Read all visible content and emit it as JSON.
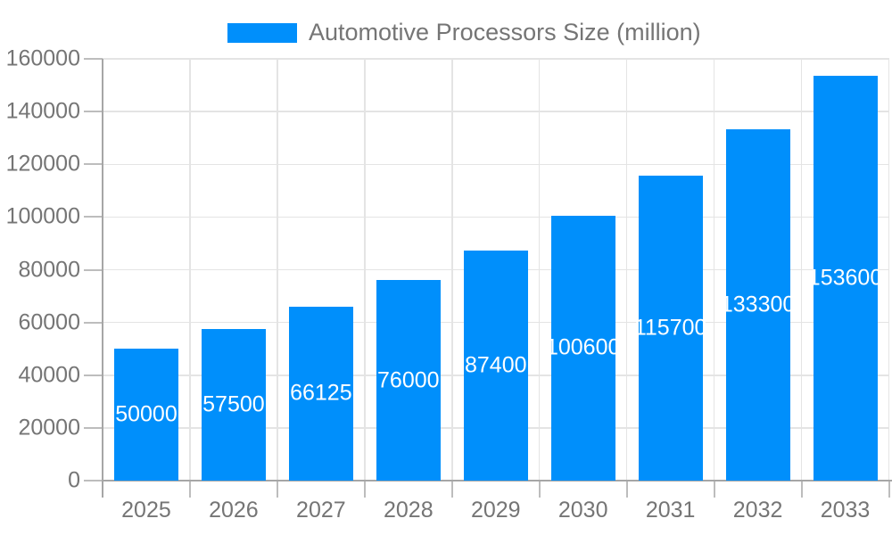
{
  "legend": {
    "label": "Automotive Processors Size (million)"
  },
  "chart_data": {
    "type": "bar",
    "title": "Automotive Processors Size (million)",
    "categories": [
      "2025",
      "2026",
      "2027",
      "2028",
      "2029",
      "2030",
      "2031",
      "2032",
      "2033"
    ],
    "values": [
      50000,
      57500,
      66125,
      76000,
      87400,
      100600,
      115700,
      133300,
      153600
    ],
    "bar_labels": [
      "50000",
      "57500",
      "66125",
      "76000",
      "87400",
      "100600",
      "115700",
      "133300",
      "153600"
    ],
    "xlabel": "",
    "ylabel": "",
    "ylim": [
      0,
      160000
    ],
    "yticks": [
      0,
      20000,
      40000,
      60000,
      80000,
      100000,
      120000,
      140000,
      160000
    ],
    "grid": true,
    "legend_position": "top",
    "colors": {
      "bar": "#008FFB",
      "grid": "#E4E4E4",
      "axis": "#A6A6A6",
      "tick": "#BDBDBD",
      "text": "#757575",
      "bar_label": "#FFFFFF",
      "background": "#FFFFFF"
    }
  }
}
